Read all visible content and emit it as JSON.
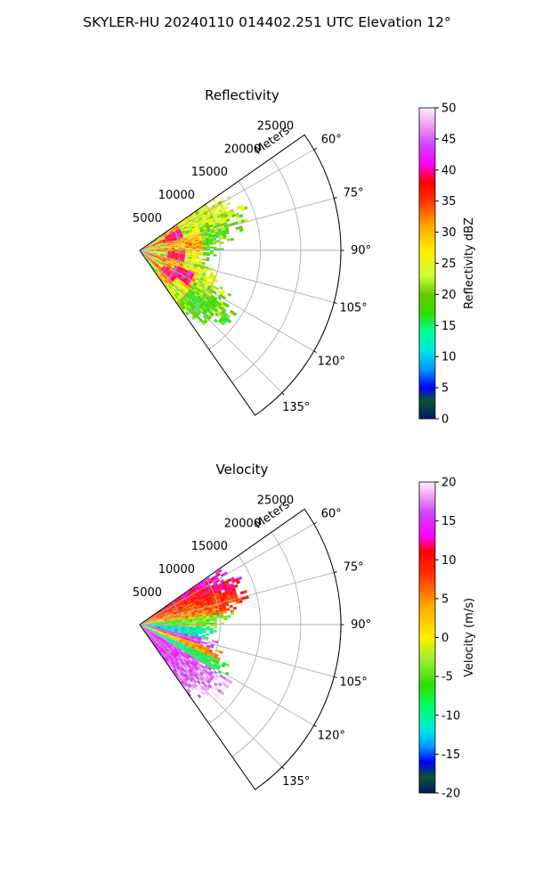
{
  "suptitle": "SKYLER-HU  20240110  014402.251 UTC Elevation 12°",
  "chart_data": [
    {
      "type": "heatmap",
      "subtype": "polar-sector (PPI radar)",
      "title": "Reflectivity",
      "radial_label": "Meters",
      "range_ticks": [
        5000,
        10000,
        15000,
        20000,
        25000
      ],
      "range_max": 25000,
      "azimuth_ticks": [
        "60°",
        "75°",
        "90°",
        "105°",
        "120°",
        "135°"
      ],
      "azimuth_range_deg": [
        55,
        145
      ],
      "data_extent_m": 13500,
      "colorbar": {
        "label": "Reflectivity dBZ",
        "min": 0,
        "max": 50,
        "ticks": [
          0,
          5,
          10,
          15,
          20,
          25,
          30,
          35,
          40,
          45,
          50
        ],
        "stops": [
          {
            "v": 0,
            "c": "#001a66"
          },
          {
            "v": 3,
            "c": "#0a5530"
          },
          {
            "v": 5,
            "c": "#0000ff"
          },
          {
            "v": 8,
            "c": "#0099ff"
          },
          {
            "v": 11,
            "c": "#00e5e5"
          },
          {
            "v": 14,
            "c": "#00ff99"
          },
          {
            "v": 17,
            "c": "#33dd00"
          },
          {
            "v": 20,
            "c": "#66cc00"
          },
          {
            "v": 23,
            "c": "#ccff33"
          },
          {
            "v": 27,
            "c": "#ffee00"
          },
          {
            "v": 31,
            "c": "#ffaa00"
          },
          {
            "v": 35,
            "c": "#ff3300"
          },
          {
            "v": 38,
            "c": "#ff0000"
          },
          {
            "v": 41,
            "c": "#ff00ff"
          },
          {
            "v": 44,
            "c": "#cc44ff"
          },
          {
            "v": 47,
            "c": "#ee99ee"
          },
          {
            "v": 50,
            "c": "#ffeeff"
          }
        ]
      }
    },
    {
      "type": "heatmap",
      "subtype": "polar-sector (PPI radar)",
      "title": "Velocity",
      "radial_label": "Meters",
      "range_ticks": [
        5000,
        10000,
        15000,
        20000,
        25000
      ],
      "range_max": 25000,
      "azimuth_ticks": [
        "60°",
        "75°",
        "90°",
        "105°",
        "120°",
        "135°"
      ],
      "azimuth_range_deg": [
        55,
        145
      ],
      "data_extent_m": 13500,
      "colorbar": {
        "label": "Velocity (m/s)",
        "min": -20,
        "max": 20,
        "ticks": [
          -20,
          -15,
          -10,
          -5,
          0,
          5,
          10,
          15,
          20
        ],
        "stops": [
          {
            "v": -20,
            "c": "#001a66"
          },
          {
            "v": -18,
            "c": "#0a5530"
          },
          {
            "v": -16,
            "c": "#0000ff"
          },
          {
            "v": -14,
            "c": "#0099ff"
          },
          {
            "v": -12,
            "c": "#00e5e5"
          },
          {
            "v": -9,
            "c": "#00ff66"
          },
          {
            "v": -6,
            "c": "#33dd00"
          },
          {
            "v": -3,
            "c": "#99ee33"
          },
          {
            "v": 0,
            "c": "#ffee00"
          },
          {
            "v": 4,
            "c": "#ffaa00"
          },
          {
            "v": 8,
            "c": "#ff3300"
          },
          {
            "v": 11,
            "c": "#ff0000"
          },
          {
            "v": 13,
            "c": "#ff00ff"
          },
          {
            "v": 16,
            "c": "#cc44ff"
          },
          {
            "v": 18,
            "c": "#ee99ee"
          },
          {
            "v": 20,
            "c": "#ffeeff"
          }
        ]
      }
    }
  ]
}
